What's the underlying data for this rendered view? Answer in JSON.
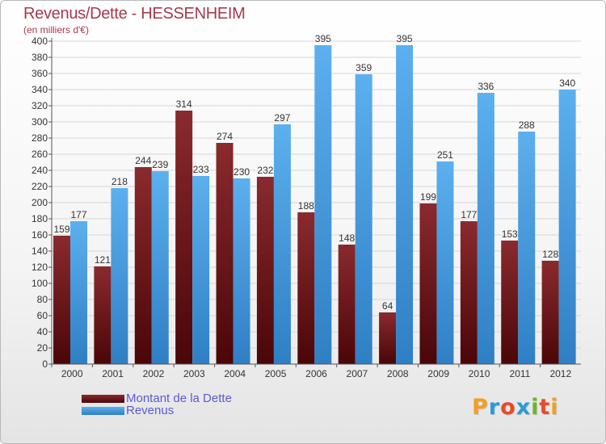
{
  "header": {
    "title": "Revenus/Dette - HESSENHEIM",
    "unit": "(en milliers d'€)"
  },
  "legend": {
    "debt_label": "Montant de la Dette",
    "revenue_label": "Revenus"
  },
  "logo": {
    "text": "Proxiti"
  },
  "colors": {
    "debt": "#7a1e22",
    "revenue": "#4a9ee0",
    "title": "#a8384c",
    "legend_text": "#5a5ad8"
  },
  "chart_data": {
    "type": "bar",
    "title": "Revenus/Dette - HESSENHEIM",
    "ylabel": "(en milliers d'€)",
    "categories": [
      "2000",
      "2001",
      "2002",
      "2003",
      "2004",
      "2005",
      "2006",
      "2007",
      "2008",
      "2009",
      "2010",
      "2011",
      "2012"
    ],
    "series": [
      {
        "name": "Montant de la Dette",
        "values": [
          159,
          121,
          244,
          314,
          274,
          232,
          188,
          148,
          64,
          199,
          177,
          153,
          128
        ]
      },
      {
        "name": "Revenus",
        "values": [
          177,
          218,
          239,
          233,
          230,
          297,
          395,
          359,
          395,
          251,
          336,
          288,
          340
        ]
      }
    ],
    "ylim": [
      0,
      400
    ],
    "ytick_step": 20,
    "grid": true,
    "legend_position": "bottom-left"
  }
}
